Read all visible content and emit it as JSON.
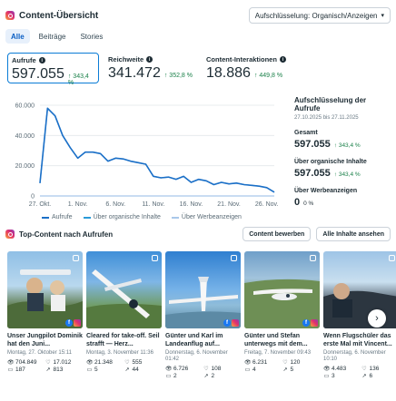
{
  "header": {
    "title": "Content-Übersicht",
    "dropdown_label": "Aufschlüsselung: Organisch/Anzeigen"
  },
  "tabs": [
    {
      "label": "Alle",
      "active": true
    },
    {
      "label": "Beiträge",
      "active": false
    },
    {
      "label": "Stories",
      "active": false
    }
  ],
  "metrics": [
    {
      "label": "Aufrufe",
      "value": "597.055",
      "delta": "343,4 %"
    },
    {
      "label": "Reichweite",
      "value": "341.472",
      "delta": "352,8 %"
    },
    {
      "label": "Content-Interaktionen",
      "value": "18.886",
      "delta": "449,8 %"
    }
  ],
  "chart_data": {
    "type": "line",
    "y_ticks": [
      "60.000",
      "40.000",
      "20.000",
      "0"
    ],
    "ylim": [
      0,
      60000
    ],
    "x_ticks": [
      "27. Okt.",
      "1. Nov.",
      "6. Nov.",
      "11. Nov.",
      "16. Nov.",
      "21. Nov.",
      "26. Nov."
    ],
    "x": [
      "27. Okt.",
      "28. Okt.",
      "29. Okt.",
      "30. Okt.",
      "31. Okt.",
      "1. Nov.",
      "2. Nov.",
      "3. Nov.",
      "4. Nov.",
      "5. Nov.",
      "6. Nov.",
      "7. Nov.",
      "8. Nov.",
      "9. Nov.",
      "10. Nov.",
      "11. Nov.",
      "12. Nov.",
      "13. Nov.",
      "14. Nov.",
      "15. Nov.",
      "16. Nov.",
      "17. Nov.",
      "18. Nov.",
      "19. Nov.",
      "20. Nov.",
      "21. Nov.",
      "22. Nov.",
      "23. Nov.",
      "24. Nov.",
      "25. Nov.",
      "26. Nov.",
      "27. Nov."
    ],
    "series": [
      {
        "name": "Aufrufe",
        "color": "#1b6fc7",
        "values": [
          8500,
          58000,
          53000,
          40000,
          32000,
          25000,
          29000,
          29000,
          28000,
          23000,
          25000,
          24500,
          23000,
          22000,
          21000,
          13000,
          12000,
          12500,
          11000,
          13000,
          9000,
          11000,
          10000,
          7500,
          9000,
          8000,
          8500,
          7500,
          7000,
          6500,
          5500,
          2500
        ]
      },
      {
        "name": "Über organische Inhalte",
        "color": "#2a9bd8",
        "values": [
          8500,
          58000,
          53000,
          40000,
          32000,
          25000,
          29000,
          29000,
          28000,
          23000,
          25000,
          24500,
          23000,
          22000,
          21000,
          13000,
          12000,
          12500,
          11000,
          13000,
          9000,
          11000,
          10000,
          7500,
          9000,
          8000,
          8500,
          7500,
          7000,
          6500,
          5500,
          2500
        ]
      },
      {
        "name": "Über Werbeanzeigen",
        "color": "#a9c8ea",
        "values": [
          0,
          0,
          0,
          0,
          0,
          0,
          0,
          0,
          0,
          0,
          0,
          0,
          0,
          0,
          0,
          0,
          0,
          0,
          0,
          0,
          0,
          0,
          0,
          0,
          0,
          0,
          0,
          0,
          0,
          0,
          0,
          0
        ]
      }
    ]
  },
  "side": {
    "title": "Aufschlüsselung der Aufrufe",
    "date_range": "27.10.2025 bis 27.11.2025",
    "items": [
      {
        "label": "Gesamt",
        "value": "597.055",
        "delta": "343,4 %"
      },
      {
        "label": "Über organische Inhalte",
        "value": "597.055",
        "delta": "343,4 %"
      },
      {
        "label": "Über Werbeanzeigen",
        "value": "0",
        "delta": "0 %"
      }
    ]
  },
  "top_content": {
    "title": "Top-Content nach Aufrufen",
    "edit_button": "Content bewerben",
    "all_button": "Alle Inhalte ansehen"
  },
  "cards": [
    {
      "caption": "Unser Jungpilot Dominik hat den Juni...",
      "date": "Montag, 27. Oktober 15:11",
      "views": "704.849",
      "likes": "17.012",
      "comments": "187",
      "shares": "813",
      "crosspost": true
    },
    {
      "caption": "Cleared for take-off. Seil strafft — Herz...",
      "date": "Montag, 3. November 11:36",
      "views": "21.348",
      "likes": "555",
      "comments": "5",
      "shares": "44",
      "crosspost": false
    },
    {
      "caption": "Günter und Karl im Landeanflug auf...",
      "date": "Donnerstag, 6. November 01:42",
      "views": "6.726",
      "likes": "108",
      "comments": "2",
      "shares": "2",
      "crosspost": true
    },
    {
      "caption": "Günter und Stefan unterwegs mit dem...",
      "date": "Freitag, 7. November 09:43",
      "views": "6.231",
      "likes": "120",
      "comments": "4",
      "shares": "5",
      "crosspost": true
    },
    {
      "caption": "Wenn Flugschüler das erste Mal mit Vincent...",
      "date": "Donnerstag, 6. November 10:10",
      "views": "4.483",
      "likes": "136",
      "comments": "3",
      "shares": "6",
      "crosspost": false
    }
  ]
}
